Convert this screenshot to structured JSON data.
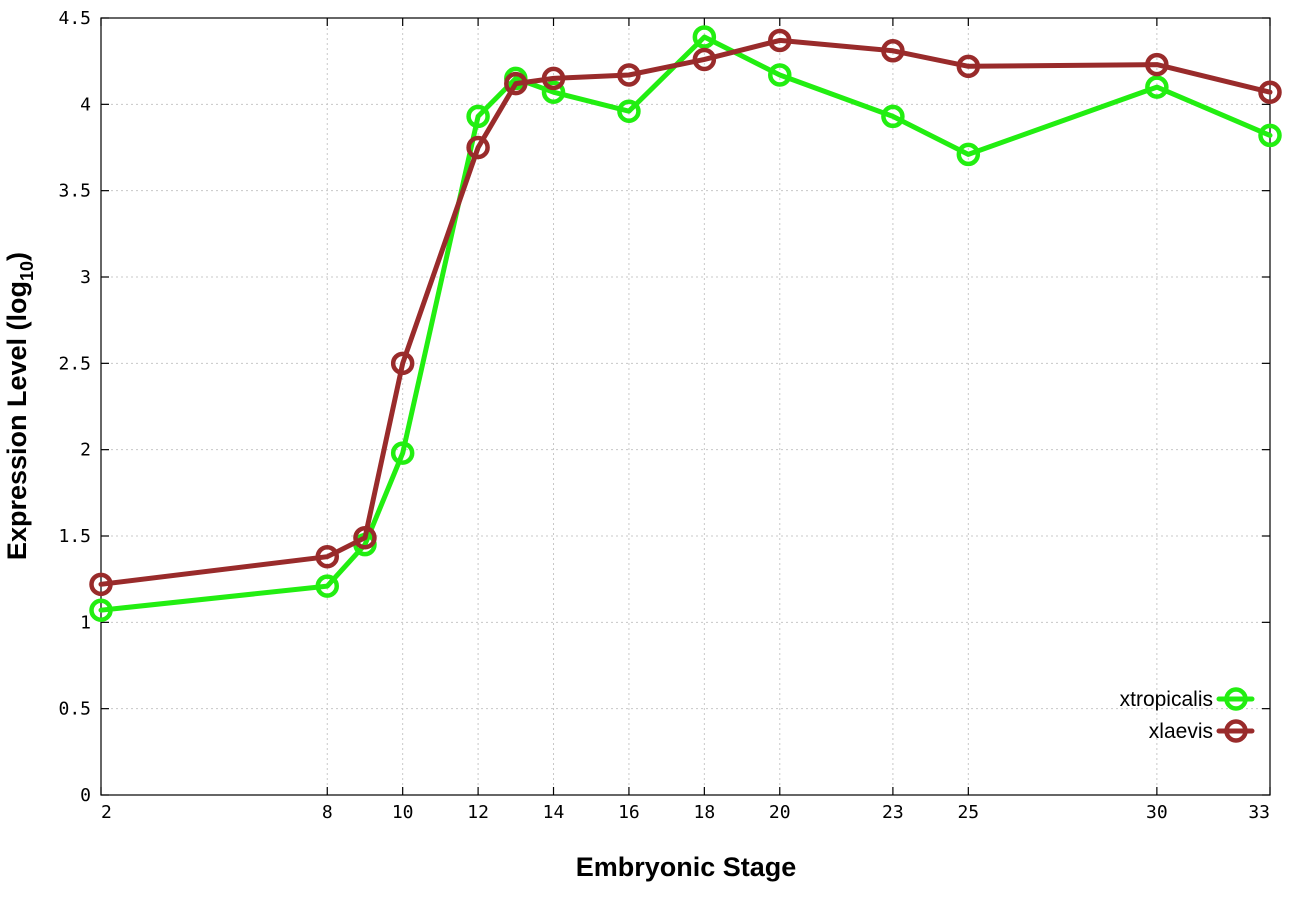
{
  "chart_data": {
    "type": "line",
    "title": "",
    "xlabel": "Embryonic Stage",
    "ylabel": "Expression Level (log",
    "ylabel_sub": "10",
    "ylabel_suffix": ")",
    "xlim": [
      2,
      33
    ],
    "ylim": [
      0,
      4.5
    ],
    "x_ticks": [
      2,
      8,
      10,
      12,
      14,
      16,
      18,
      20,
      23,
      25,
      30,
      33
    ],
    "x_tick_labels": [
      "2",
      "8",
      "10",
      "12",
      "14",
      "16",
      "18",
      "20",
      "23",
      "25",
      "30",
      "33"
    ],
    "y_ticks": [
      0,
      0.5,
      1,
      1.5,
      2,
      2.5,
      3,
      3.5,
      4,
      4.5
    ],
    "y_tick_labels": [
      "0",
      "0.5",
      "1",
      "1.5",
      "2",
      "2.5",
      "3",
      "3.5",
      "4",
      "4.5"
    ],
    "grid": true,
    "legend_position": "bottom-right",
    "x": [
      2,
      8,
      9,
      10,
      12,
      13,
      14,
      16,
      18,
      20,
      23,
      25,
      30,
      33
    ],
    "series": [
      {
        "name": "xtropicalis",
        "color": "#22ee11",
        "values": [
          1.07,
          1.21,
          1.45,
          1.98,
          3.93,
          4.15,
          4.07,
          3.96,
          4.39,
          4.17,
          3.93,
          3.71,
          4.1,
          3.82
        ]
      },
      {
        "name": "xlaevis",
        "color": "#992b2b",
        "values": [
          1.22,
          1.38,
          1.49,
          2.5,
          3.75,
          4.12,
          4.15,
          4.17,
          4.26,
          4.37,
          4.31,
          4.22,
          4.23,
          4.07
        ]
      }
    ]
  }
}
